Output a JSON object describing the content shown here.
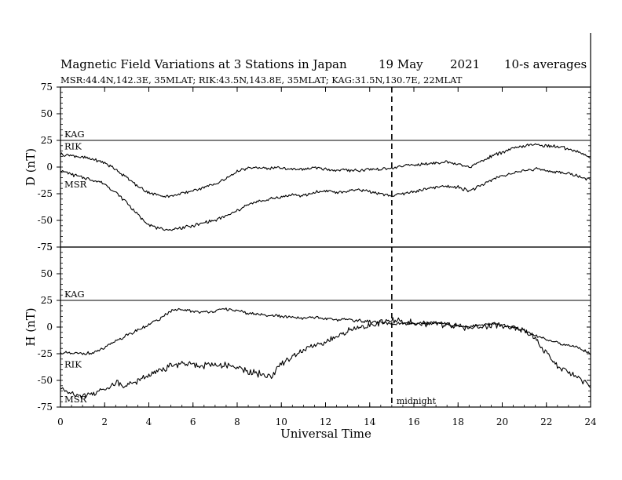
{
  "chart_data": {
    "type": "line",
    "title": {
      "main": "Magnetic Field Variations at 3 Stations in Japan",
      "date": "19 May",
      "year": "2021",
      "averaging": "10-s averages"
    },
    "subtitle": "MSR:44.4N,142.3E, 35MLAT;  RIK:43.5N,143.8E, 35MLAT;  KAG:31.5N,130.7E, 22MLAT",
    "xlabel": "Universal Time",
    "xlim": [
      0,
      24
    ],
    "xticks": [
      "0",
      "2",
      "4",
      "6",
      "8",
      "10",
      "12",
      "14",
      "16",
      "18",
      "20",
      "22",
      "24"
    ],
    "annotation": {
      "x": 15,
      "label": "midnight",
      "style": "dashed"
    },
    "panels": [
      {
        "component": "D",
        "ylabel": "D (nT)",
        "ylim": [
          -75,
          75
        ],
        "yticks": [
          "75",
          "50",
          "25",
          "0",
          "-25",
          "-50",
          "-75"
        ],
        "series": [
          {
            "name": "KAG",
            "x": [
              0,
              24
            ],
            "y": [
              25,
              25
            ]
          },
          {
            "name": "RIK",
            "x": [
              0,
              0.5,
              1,
              1.5,
              2,
              2.5,
              3,
              3.5,
              4,
              4.5,
              5,
              5.5,
              6,
              6.5,
              7,
              7.5,
              8,
              8.5,
              9,
              9.5,
              10,
              10.5,
              11,
              11.5,
              12,
              12.5,
              13,
              13.5,
              14,
              14.5,
              15,
              15.5,
              16,
              16.5,
              17,
              17.5,
              18,
              18.5,
              19,
              19.5,
              20,
              20.5,
              21,
              21.5,
              22,
              22.5,
              23,
              23.5,
              24
            ],
            "y": [
              12,
              11,
              9,
              7,
              4,
              -2,
              -10,
              -18,
              -24,
              -27,
              -27,
              -25,
              -22,
              -19,
              -16,
              -11,
              -4,
              -1,
              -1,
              -1,
              -1,
              -2,
              -2,
              -1,
              -2,
              -3,
              -3,
              -3,
              -2,
              -2,
              -1,
              1,
              2,
              3,
              4,
              5,
              3,
              0,
              5,
              10,
              14,
              17,
              20,
              21,
              20,
              19,
              17,
              14,
              8
            ]
          },
          {
            "name": "MSR",
            "x": [
              0,
              0.5,
              1,
              1.5,
              2,
              2.5,
              3,
              3.5,
              4,
              4.5,
              5,
              5.5,
              6,
              6.5,
              7,
              7.5,
              8,
              8.5,
              9,
              9.5,
              10,
              10.5,
              11,
              11.5,
              12,
              12.5,
              13,
              13.5,
              14,
              14.5,
              15,
              15.5,
              16,
              16.5,
              17,
              17.5,
              18,
              18.5,
              19,
              19.5,
              20,
              20.5,
              21,
              21.5,
              22,
              22.5,
              23,
              23.5,
              24
            ],
            "y": [
              -3,
              -7,
              -10,
              -12,
              -16,
              -24,
              -33,
              -45,
              -54,
              -58,
              -59,
              -57,
              -55,
              -52,
              -50,
              -46,
              -41,
              -35,
              -32,
              -30,
              -28,
              -26,
              -27,
              -24,
              -22,
              -24,
              -23,
              -21,
              -23,
              -25,
              -27,
              -25,
              -23,
              -21,
              -19,
              -18,
              -19,
              -22,
              -18,
              -12,
              -8,
              -6,
              -3,
              -2,
              -3,
              -5,
              -6,
              -9,
              -12
            ]
          }
        ]
      },
      {
        "component": "H",
        "ylabel": "H (nT)",
        "ylim": [
          -75,
          75
        ],
        "yticks": [
          "75",
          "50",
          "25",
          "0",
          "-25",
          "-50",
          "-75"
        ],
        "series": [
          {
            "name": "KAG",
            "x": [
              0,
              24
            ],
            "y": [
              25,
              25
            ]
          },
          {
            "name": "RIK",
            "x": [
              0,
              0.5,
              1,
              1.5,
              2,
              2.5,
              3,
              3.5,
              4,
              4.5,
              5,
              5.5,
              6,
              6.5,
              7,
              7.5,
              8,
              8.5,
              9,
              9.5,
              10,
              10.5,
              11,
              11.5,
              12,
              12.5,
              13,
              13.5,
              14,
              14.5,
              15,
              15.5,
              16,
              16.5,
              17,
              17.5,
              18,
              18.5,
              19,
              19.5,
              20,
              20.5,
              21,
              21.5,
              22,
              22.5,
              23,
              23.5,
              24
            ],
            "y": [
              -24,
              -25,
              -25,
              -24,
              -20,
              -13,
              -8,
              -3,
              2,
              8,
              15,
              16,
              15,
              14,
              15,
              17,
              15,
              13,
              12,
              11,
              10,
              9,
              8,
              9,
              8,
              7,
              7,
              6,
              5,
              4,
              3,
              3,
              3,
              3,
              4,
              3,
              1,
              0,
              2,
              3,
              2,
              0,
              -3,
              -8,
              -12,
              -15,
              -17,
              -20,
              -25
            ]
          },
          {
            "name": "MSR",
            "x": [
              0,
              0.5,
              1,
              1.5,
              2,
              2.5,
              3,
              3.5,
              4,
              4.5,
              5,
              5.5,
              6,
              6.5,
              7,
              7.5,
              8,
              8.5,
              9,
              9.5,
              10,
              10.5,
              11,
              11.5,
              12,
              12.5,
              13,
              13.5,
              14,
              14.5,
              15,
              15.5,
              16,
              16.5,
              17,
              17.5,
              18,
              18.5,
              19,
              19.5,
              20,
              20.5,
              21,
              21.5,
              22,
              22.5,
              23,
              23.5,
              24
            ],
            "y": [
              -58,
              -62,
              -64,
              -62,
              -58,
              -52,
              -55,
              -50,
              -45,
              -40,
              -36,
              -34,
              -35,
              -36,
              -35,
              -36,
              -38,
              -42,
              -44,
              -47,
              -35,
              -28,
              -22,
              -18,
              -13,
              -10,
              -3,
              -1,
              1,
              4,
              6,
              5,
              4,
              3,
              4,
              2,
              1,
              -1,
              1,
              2,
              1,
              0,
              -4,
              -10,
              -25,
              -37,
              -42,
              -48,
              -55
            ]
          }
        ]
      }
    ]
  }
}
